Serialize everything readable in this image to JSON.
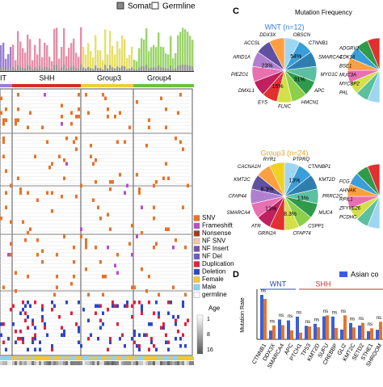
{
  "header": {
    "legend": [
      "Somatic",
      "Germline"
    ]
  },
  "panel_a": {
    "groups": [
      "IT",
      "SHH",
      "Group3",
      "Group4"
    ],
    "legend": [
      {
        "label": "SNV",
        "color": "#e8732a"
      },
      {
        "label": "Frameshift",
        "color": "#b84fc9"
      },
      {
        "label": "Nonsense",
        "color": "#a33a1a"
      },
      {
        "label": "NF SNV",
        "color": "#f2c9a8"
      },
      {
        "label": "NF Insert",
        "color": "#7b4fa8"
      },
      {
        "label": "NF Del",
        "color": "#6a5acd"
      },
      {
        "label": "Duplication",
        "color": "#e0213a"
      },
      {
        "label": "Deletion",
        "color": "#2a48c8"
      },
      {
        "label": "Female",
        "color": "#f3c63a"
      },
      {
        "label": "Male",
        "color": "#8fd3f0"
      },
      {
        "label": "germline",
        "color": "#ffffff"
      }
    ],
    "age_title": "Age",
    "age_labels": [
      "1",
      "8",
      "16"
    ]
  },
  "panel_c": {
    "letter": "C",
    "title": "Mutation Frequency",
    "pies": [
      {
        "title": "WNT (n=12)",
        "color": "#3a7bd5",
        "labels": [
          "OBSCN",
          "CTNNB1",
          "SMARCA4",
          "MYO1C",
          "APC",
          "HMCN1",
          "FLNC",
          "EYS",
          "DMXL1",
          "PIEZO1",
          "ARID1A",
          "ACCSL",
          "DDX3X"
        ],
        "percents": [
          "54%",
          "31%",
          "15%",
          "23%"
        ]
      },
      {
        "title": "Group3 (n=24)",
        "color": "#e8a020",
        "labels": [
          "PTPRQ",
          "CTNNBP1",
          "KMT2D",
          "PRRC2C",
          "MUC4",
          "CSPP1",
          "CFAP74",
          "GRIN2A",
          "ATR",
          "SMARCA4",
          "CFAP44",
          "KMT2C",
          "CACNA1H",
          "RYR1"
        ],
        "percents": [
          "13%",
          "13%",
          "8.3%",
          "13%",
          "8.3%"
        ]
      }
    ],
    "side_labels": [
      "ADGRV1",
      "CDK16",
      "BSE1",
      "MUC3A",
      "MYCBP2",
      "PAL",
      "FCG",
      "AHNAK",
      "RPIL1",
      "ZFYVE26",
      "PCDHC"
    ]
  },
  "panel_d": {
    "letter": "D",
    "legend": "Asian co",
    "groups": [
      "WNT",
      "SHH"
    ],
    "y_label": "Mutation Rate",
    "genes": [
      "CTNNB1",
      "DDX3X",
      "SMARCA4",
      "APC",
      "PTCH1",
      "TP53",
      "KMT2D",
      "SUFU",
      "CREBBP",
      "GLI2",
      "KMT2C",
      "SETD2",
      "STHE1",
      "SHROOM"
    ],
    "sig": "ns"
  }
}
